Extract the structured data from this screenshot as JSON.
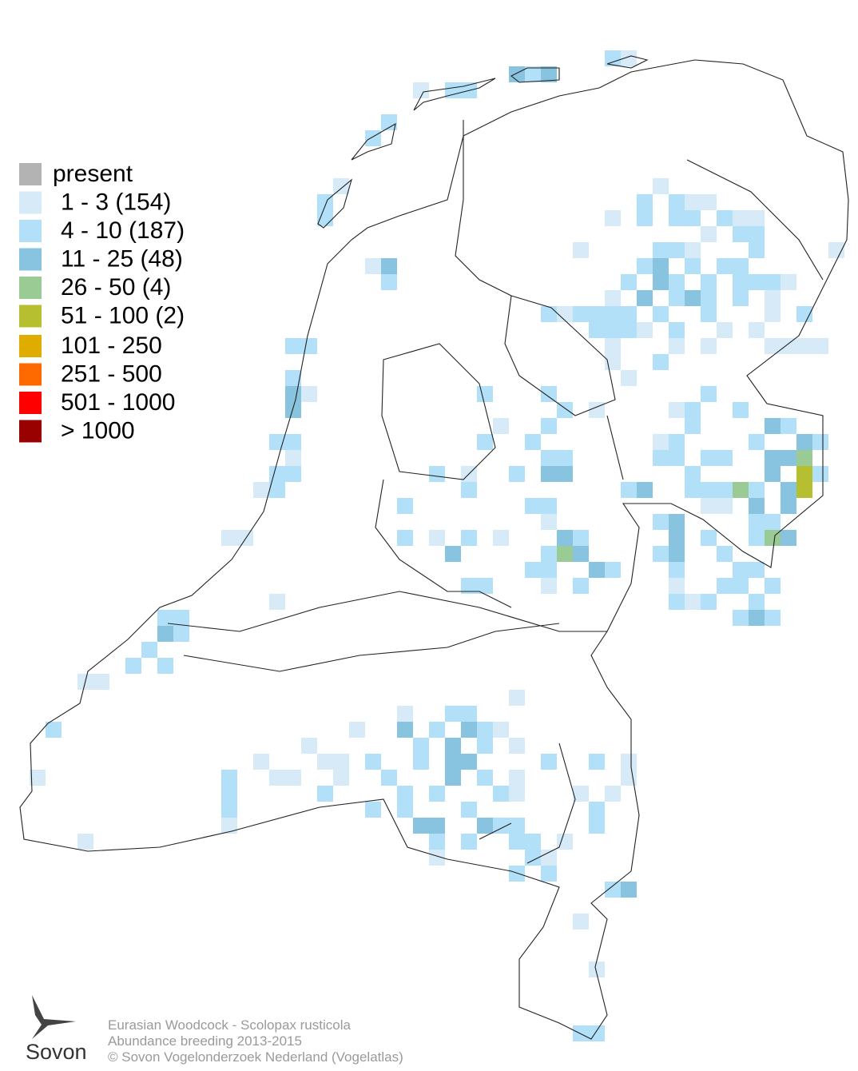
{
  "legend": {
    "items": [
      {
        "label": "present",
        "color": "#b3b3b3"
      },
      {
        "label": "1 - 3 (154)",
        "color": "#d6eaf8"
      },
      {
        "label": "4 - 10 (187)",
        "color": "#b3e0f9"
      },
      {
        "label": "11 - 25 (48)",
        "color": "#88c3df"
      },
      {
        "label": "26 - 50 (4)",
        "color": "#9acb94"
      },
      {
        "label": "51 - 100 (2)",
        "color": "#b5bf2f"
      },
      {
        "label": "101 - 250",
        "color": "#dfac00"
      },
      {
        "label": "251 - 500",
        "color": "#ff6a00"
      },
      {
        "label": "501 - 1000",
        "color": "#ff0000"
      },
      {
        "label": "> 1000",
        "color": "#990000"
      }
    ]
  },
  "footer": {
    "lines": [
      "Eurasian Woodcock - Scolopax rusticola",
      "Abundance breeding 2013-2015",
      "© Sovon Vogelonderzoek Nederland (Vogelatlas)"
    ]
  },
  "logo": {
    "text": "Sovon"
  }
}
